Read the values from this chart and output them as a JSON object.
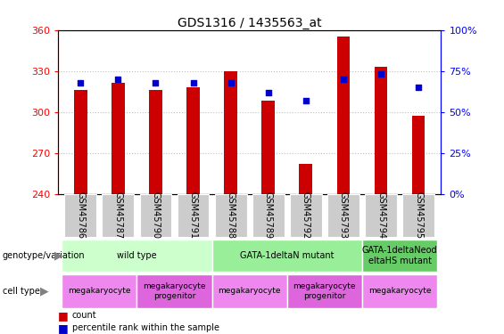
{
  "title": "GDS1316 / 1435563_at",
  "samples": [
    "GSM45786",
    "GSM45787",
    "GSM45790",
    "GSM45791",
    "GSM45788",
    "GSM45789",
    "GSM45792",
    "GSM45793",
    "GSM45794",
    "GSM45795"
  ],
  "count_values": [
    316,
    321,
    316,
    318,
    330,
    308,
    262,
    355,
    333,
    297
  ],
  "percentile_values": [
    68,
    70,
    68,
    68,
    68,
    62,
    57,
    70,
    73,
    65
  ],
  "ylim_left": [
    240,
    360
  ],
  "ylim_right": [
    0,
    100
  ],
  "yticks_left": [
    240,
    270,
    300,
    330,
    360
  ],
  "yticks_right": [
    0,
    25,
    50,
    75,
    100
  ],
  "bar_color": "#cc0000",
  "percentile_color": "#0000cc",
  "bar_width": 0.35,
  "genotype_groups": [
    {
      "label": "wild type",
      "start": 0,
      "end": 4,
      "color": "#ccffcc"
    },
    {
      "label": "GATA-1deltaN mutant",
      "start": 4,
      "end": 8,
      "color": "#99ee99"
    },
    {
      "label": "GATA-1deltaNeod\neltaHS mutant",
      "start": 8,
      "end": 10,
      "color": "#66cc66"
    }
  ],
  "cell_type_groups": [
    {
      "label": "megakaryocyte",
      "start": 0,
      "end": 2,
      "color": "#ee88ee"
    },
    {
      "label": "megakaryocyte\nprogenitor",
      "start": 2,
      "end": 4,
      "color": "#dd66dd"
    },
    {
      "label": "megakaryocyte",
      "start": 4,
      "end": 6,
      "color": "#ee88ee"
    },
    {
      "label": "megakaryocyte\nprogenitor",
      "start": 6,
      "end": 8,
      "color": "#dd66dd"
    },
    {
      "label": "megakaryocyte",
      "start": 8,
      "end": 10,
      "color": "#ee88ee"
    }
  ],
  "grid_color": "#000000",
  "grid_alpha": 0.25,
  "tick_label_bg": "#cccccc",
  "fig_width": 5.65,
  "fig_height": 3.75,
  "dpi": 100
}
